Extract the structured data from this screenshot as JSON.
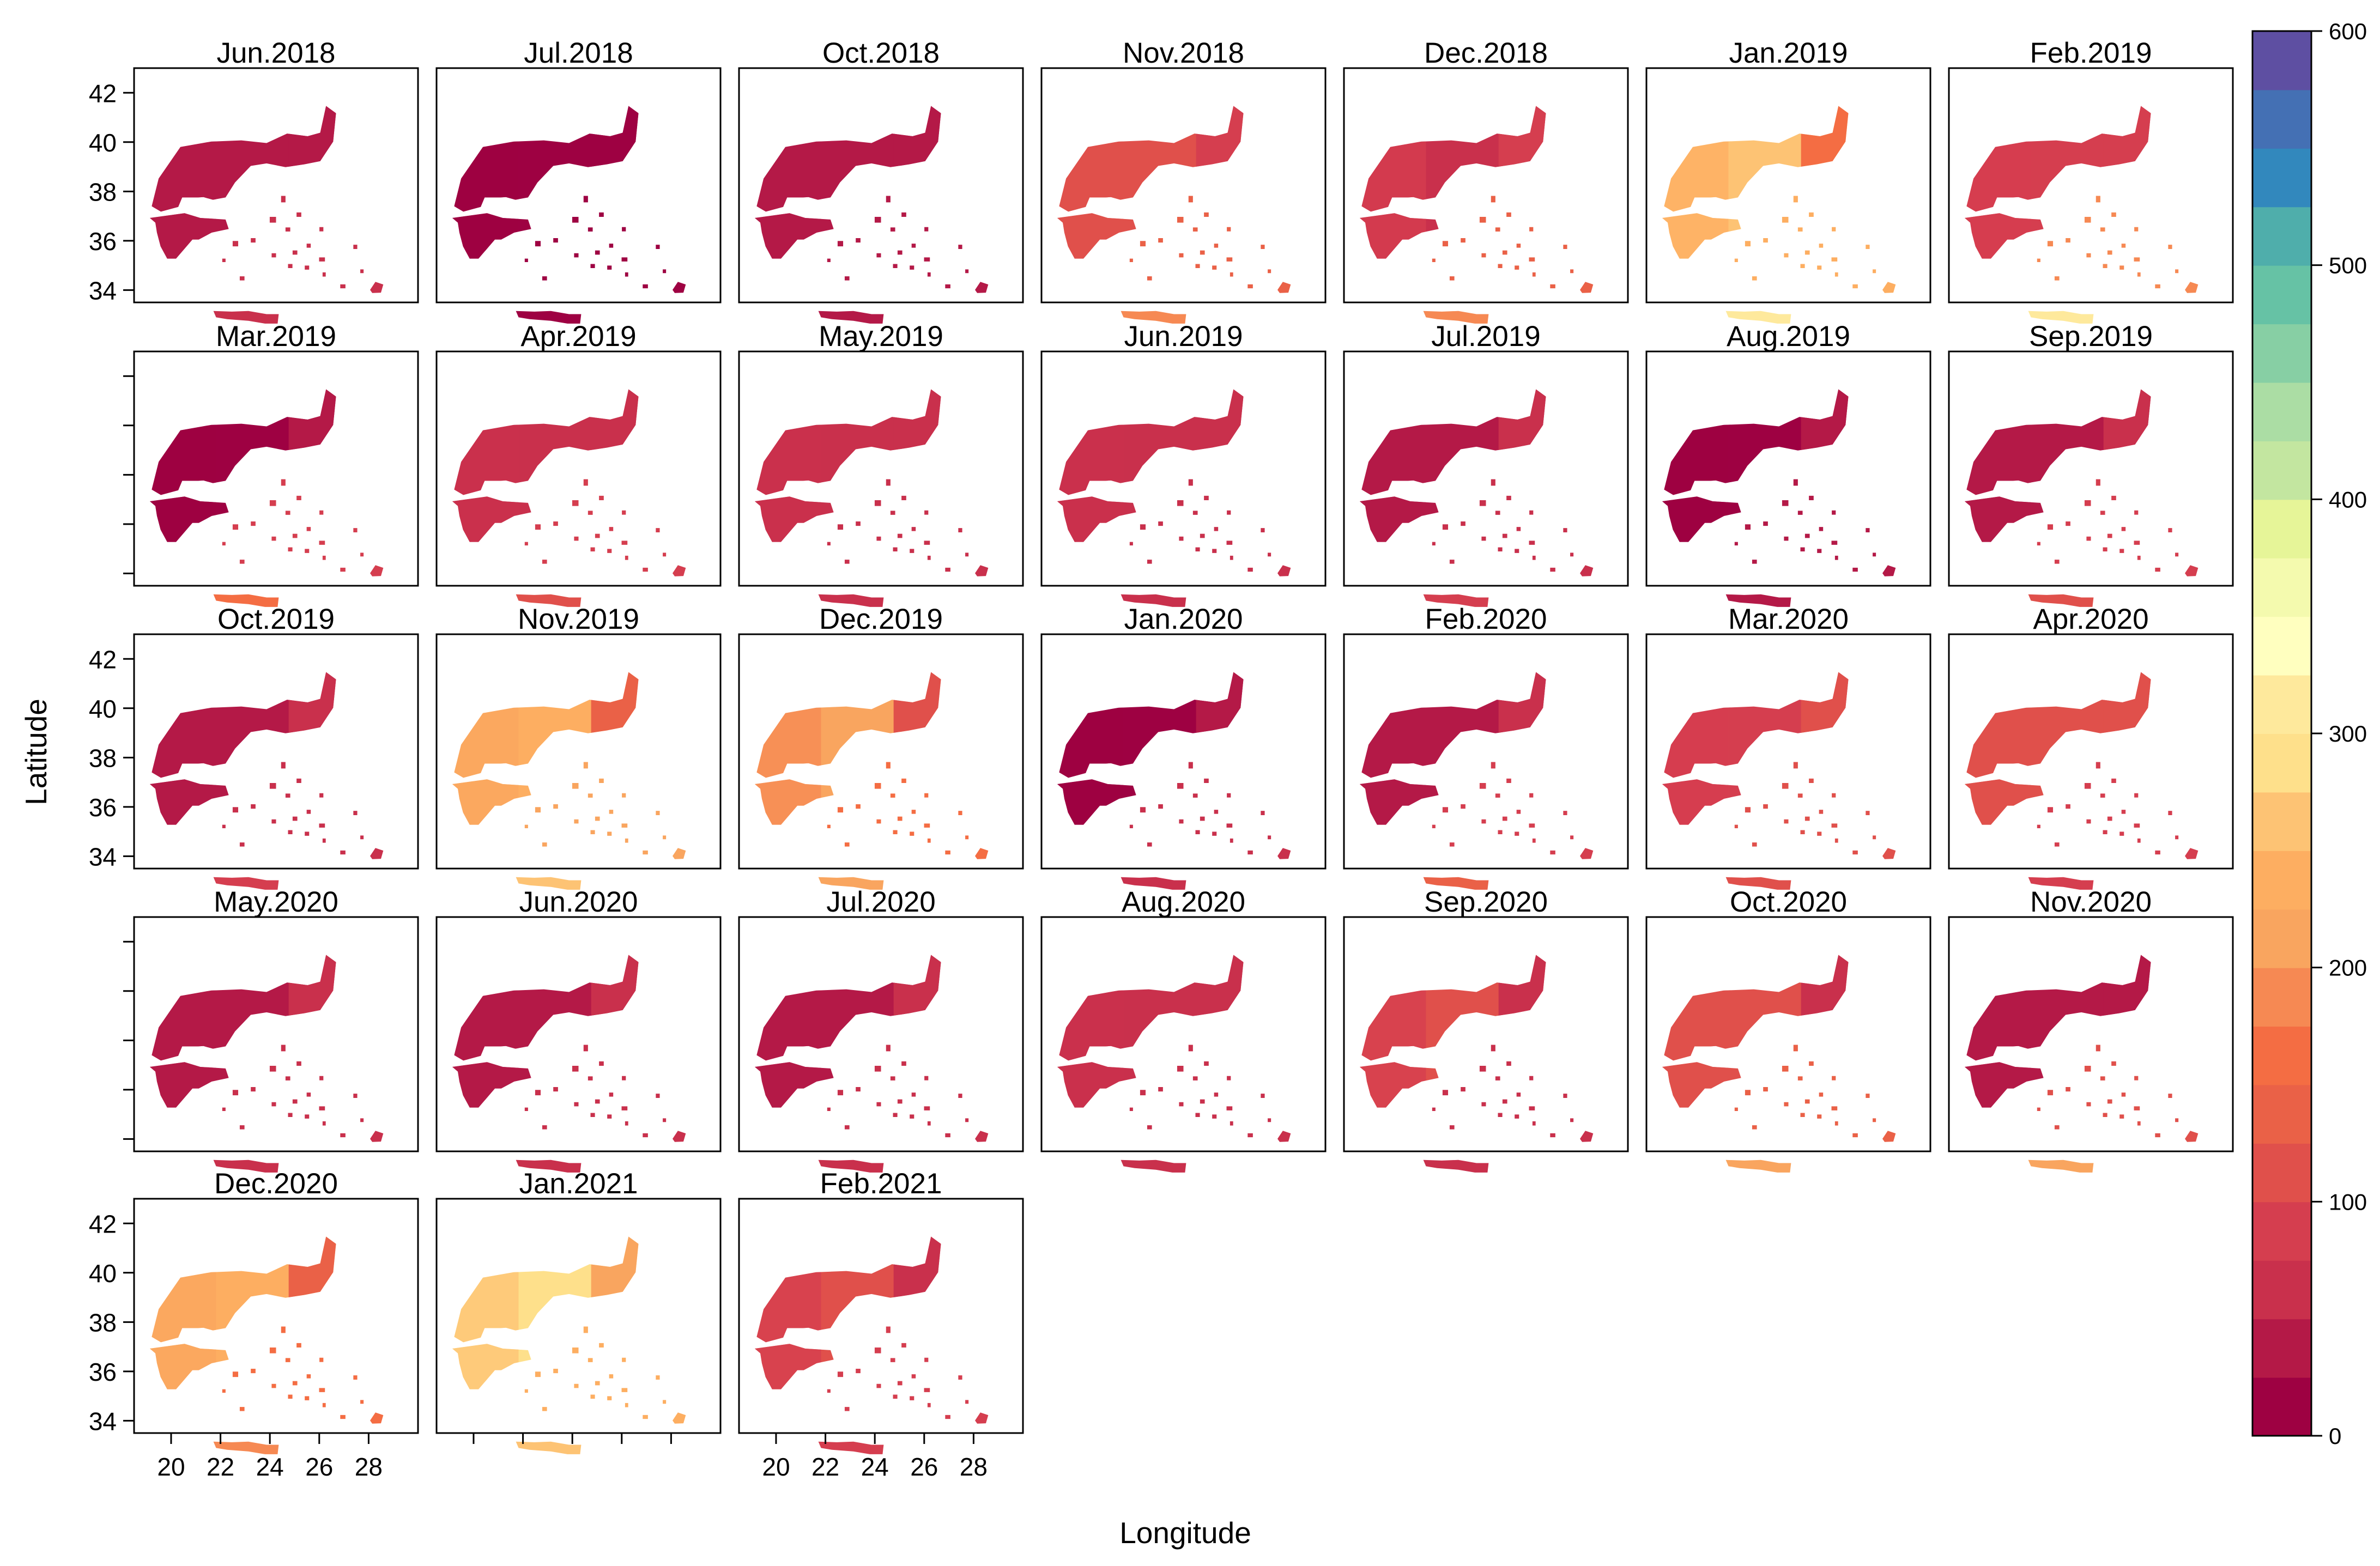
{
  "chart_data": {
    "type": "heatmap",
    "subtype": "small-multiple choropleth maps of Greece",
    "xlabel": "Longitude",
    "ylabel": "Latitude",
    "x_ticks": [
      20,
      22,
      24,
      26,
      28
    ],
    "y_ticks": [
      34,
      36,
      38,
      40,
      42
    ],
    "xlim": [
      18.5,
      30
    ],
    "ylim": [
      33.5,
      43
    ],
    "panels": [
      {
        "label": "Jun.2018",
        "mainland": 35,
        "east": 45,
        "islands": 55
      },
      {
        "label": "Jul.2018",
        "mainland": 8,
        "east": 10,
        "islands": 15
      },
      {
        "label": "Oct.2018",
        "mainland": 25,
        "east": 30,
        "islands": 35
      },
      {
        "label": "Nov.2018",
        "mainland": 110,
        "east": 90,
        "islands": 180
      },
      {
        "label": "Dec.2018",
        "mainland": 70,
        "east": 90,
        "islands": 190
      },
      {
        "label": "Jan.2019",
        "mainland": 270,
        "east": 170,
        "islands": 300
      },
      {
        "label": "Feb.2019",
        "mainland": 75,
        "east": 95,
        "islands": 300
      },
      {
        "label": "Mar.2019",
        "mainland": 15,
        "east": 30,
        "islands": 160
      },
      {
        "label": "Apr.2019",
        "mainland": 60,
        "east": 70,
        "islands": 120
      },
      {
        "label": "May.2019",
        "mainland": 70,
        "east": 60,
        "islands": 70
      },
      {
        "label": "Jun.2019",
        "mainland": 55,
        "east": 60,
        "islands": 70
      },
      {
        "label": "Jul.2019",
        "mainland": 45,
        "east": 60,
        "islands": 75
      },
      {
        "label": "Aug.2019",
        "mainland": 10,
        "east": 30,
        "islands": 40
      },
      {
        "label": "Sep.2019",
        "mainland": 35,
        "east": 50,
        "islands": 110
      },
      {
        "label": "Oct.2019",
        "mainland": 40,
        "east": 60,
        "islands": 75
      },
      {
        "label": "Nov.2019",
        "mainland": 230,
        "east": 140,
        "islands": 260
      },
      {
        "label": "Dec.2019",
        "mainland": 200,
        "east": 120,
        "islands": 200
      },
      {
        "label": "Jan.2020",
        "mainland": 15,
        "east": 40,
        "islands": 70
      },
      {
        "label": "Feb.2020",
        "mainland": 30,
        "east": 50,
        "islands": 140
      },
      {
        "label": "Mar.2020",
        "mainland": 90,
        "east": 100,
        "islands": 120
      },
      {
        "label": "Apr.2020",
        "mainland": 110,
        "east": 100,
        "islands": 90
      },
      {
        "label": "May.2020",
        "mainland": 35,
        "east": 55,
        "islands": 70
      },
      {
        "label": "Jun.2020",
        "mainland": 35,
        "east": 55,
        "islands": 70
      },
      {
        "label": "Jul.2020",
        "mainland": 30,
        "east": 50,
        "islands": 60
      },
      {
        "label": "Aug.2020",
        "mainland": 50,
        "east": 60,
        "islands": 60
      },
      {
        "label": "Sep.2020",
        "mainland": 100,
        "east": 50,
        "islands": 60
      },
      {
        "label": "Oct.2020",
        "mainland": 120,
        "east": 60,
        "islands": 200
      },
      {
        "label": "Nov.2020",
        "mainland": 25,
        "east": 40,
        "islands": 200
      },
      {
        "label": "Dec.2020",
        "mainland": 240,
        "east": 130,
        "islands": 180
      },
      {
        "label": "Jan.2021",
        "mainland": 280,
        "east": 220,
        "islands": 250
      },
      {
        "label": "Feb.2021",
        "mainland": 100,
        "east": 70,
        "islands": 85
      }
    ],
    "legend": {
      "position": "right",
      "ticks": [
        "0",
        "100",
        "200",
        "300",
        "400",
        "500",
        "600"
      ],
      "range": [
        0,
        600
      ],
      "palette": [
        "#9e0142",
        "#b41947",
        "#c9304c",
        "#d53e4f",
        "#e0504b",
        "#ea6147",
        "#f46d43",
        "#f68953",
        "#f9a55f",
        "#fdae61",
        "#fdc374",
        "#fee08b",
        "#fee99c",
        "#ffffbf",
        "#f4faae",
        "#e6f598",
        "#c3e6a0",
        "#abdda4",
        "#87cfa4",
        "#66c2a5",
        "#4faeab",
        "#3288bd",
        "#4470b4",
        "#5e4fa2"
      ]
    }
  }
}
